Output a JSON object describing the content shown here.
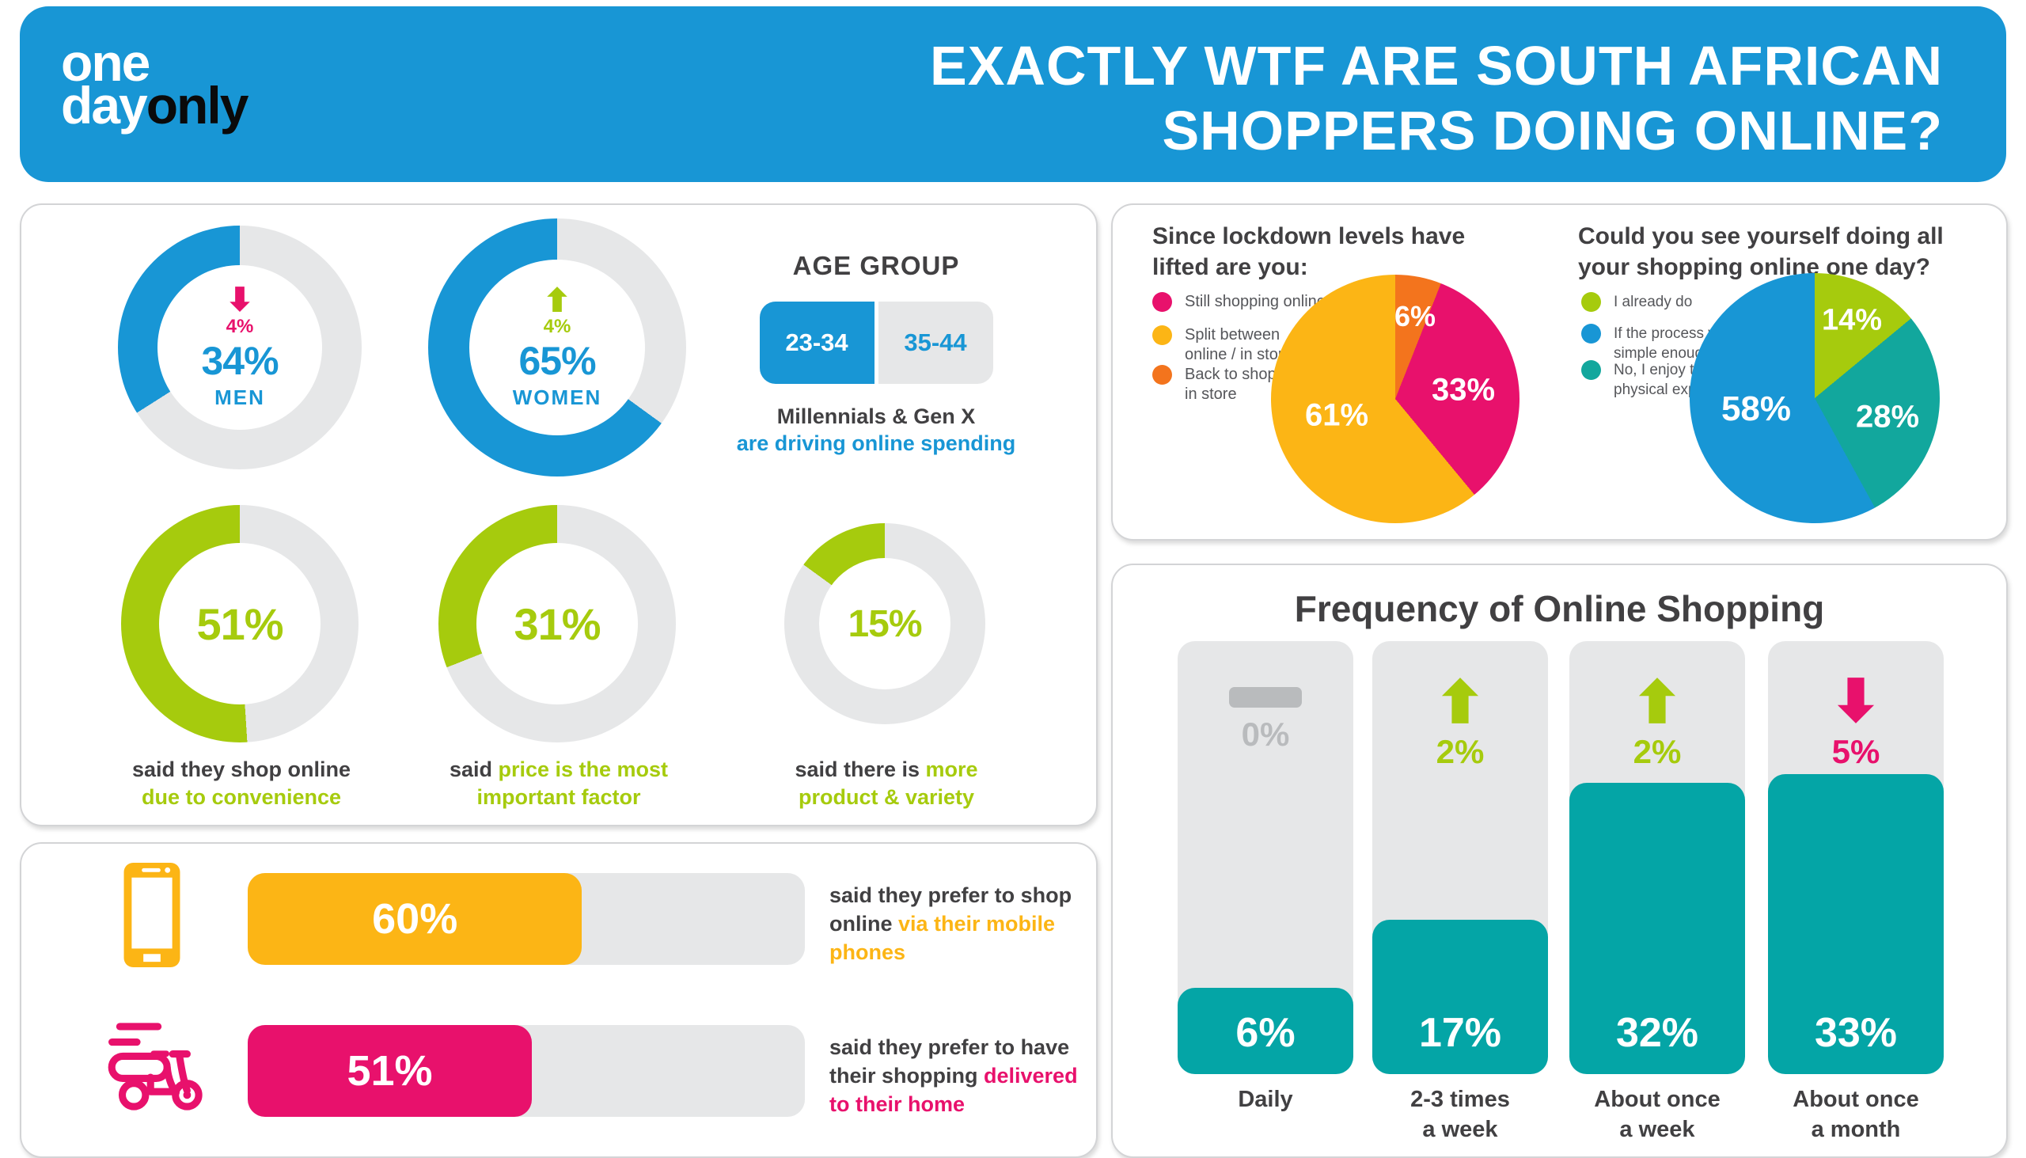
{
  "colors": {
    "blue": "#1896d5",
    "pink": "#e8116c",
    "yellow": "#fcb515",
    "orange": "#f3741d",
    "green": "#a6cb0d",
    "teal": "#04a5a6",
    "teal_pie": "#12a79d",
    "track_gray": "#e6e7e8",
    "dark": "#414042",
    "muted": "#b9bbbd",
    "legend_text": "#55565a",
    "header_bg": "#1896d5"
  },
  "brand": {
    "logo_line1": "one",
    "logo_line2_light": "day",
    "logo_line2_dark": "only"
  },
  "header": {
    "title_line1": "EXACTLY WTF ARE SOUTH AFRICAN",
    "title_line2": "SHOPPERS DOING ONLINE?"
  },
  "chart_data": {
    "gender_split": {
      "type": "donut",
      "series": [
        {
          "label": "MEN",
          "value": 34,
          "display": "34%",
          "change": "4%",
          "trend": "down",
          "color": "blue"
        },
        {
          "label": "WOMEN",
          "value": 65,
          "display": "65%",
          "change": "4%",
          "trend": "up",
          "color": "blue"
        }
      ]
    },
    "age_group": {
      "heading": "AGE GROUP",
      "primary": "23-34",
      "secondary": "35-44",
      "note_dark": "Millennials & Gen X",
      "note_blue": "are driving online spending"
    },
    "shopping_reasons": {
      "type": "donut",
      "series": [
        {
          "value": 51,
          "display": "51%",
          "color": "green",
          "line1_dark": "said they shop online",
          "line1_green": "",
          "line2_green": "due to convenience"
        },
        {
          "value": 31,
          "display": "31%",
          "color": "green",
          "line1_dark": "said ",
          "line1_green": "price is the most",
          "line2_green": "important factor"
        },
        {
          "value": 15,
          "display": "15%",
          "color": "green",
          "line1_dark": "said there is ",
          "line1_green": "more",
          "line2_green": "product & variety"
        }
      ]
    },
    "shopping_preferences": {
      "type": "bar",
      "series": [
        {
          "value": 60,
          "display": "60%",
          "color": "yellow",
          "icon": "mobile-phone-icon",
          "line1_dark": "said they prefer to shop",
          "line2_dark": "online ",
          "line2_hl": "via their mobile",
          "line3_hl": "phones"
        },
        {
          "value": 51,
          "display": "51%",
          "color": "pink",
          "icon": "delivery-scooter-icon",
          "line1_dark": "said they prefer to have",
          "line2_dark": "their shopping ",
          "line2_hl": "delivered",
          "line3_hl": "to their home"
        }
      ]
    },
    "lockdown_question": {
      "type": "pie",
      "title_line1": "Since lockdown levels have",
      "title_line2": "lifted are you:",
      "legend": [
        {
          "label": "Still shopping online",
          "color": "pink"
        },
        {
          "label": "Split between\nonline / in store",
          "color": "yellow"
        },
        {
          "label": "Back to shopping\nin store",
          "color": "orange"
        }
      ],
      "slices": [
        {
          "value": 6,
          "display": "6%",
          "color": "orange",
          "label": "Back to shopping in store"
        },
        {
          "value": 33,
          "display": "33%",
          "color": "pink",
          "label": "Still shopping online"
        },
        {
          "value": 61,
          "display": "61%",
          "color": "yellow",
          "label": "Split between online / in store"
        }
      ]
    },
    "online_one_day_question": {
      "type": "pie",
      "title_line1": "Could you see yourself doing all",
      "title_line2": "your shopping online one day?",
      "legend": [
        {
          "label": "I already do",
          "color": "green"
        },
        {
          "label": "If the process was\nsimple enough",
          "color": "blue"
        },
        {
          "label": "No, I enjoy the\nphysical experience",
          "color": "teal_pie"
        }
      ],
      "slices": [
        {
          "value": 14,
          "display": "14%",
          "color": "green",
          "label": "I already do"
        },
        {
          "value": 28,
          "display": "28%",
          "color": "teal_pie",
          "label": "No, I enjoy the physical experience"
        },
        {
          "value": 58,
          "display": "58%",
          "color": "blue",
          "label": "If the process was simple enough"
        }
      ]
    },
    "frequency": {
      "type": "bar",
      "title": "Frequency of Online Shopping",
      "bar_color": "teal",
      "categories": [
        "Daily",
        "2-3 times\na week",
        "About once\na week",
        "About once\na month"
      ],
      "series": [
        {
          "category": "Daily",
          "value": 6,
          "display": "6%",
          "change": "0%",
          "trend": "none"
        },
        {
          "category": "2-3 times\na week",
          "value": 17,
          "display": "17%",
          "change": "2%",
          "trend": "up"
        },
        {
          "category": "About once\na week",
          "value": 32,
          "display": "32%",
          "change": "2%",
          "trend": "up"
        },
        {
          "category": "About once\na month",
          "value": 33,
          "display": "33%",
          "change": "5%",
          "trend": "down"
        }
      ]
    }
  }
}
